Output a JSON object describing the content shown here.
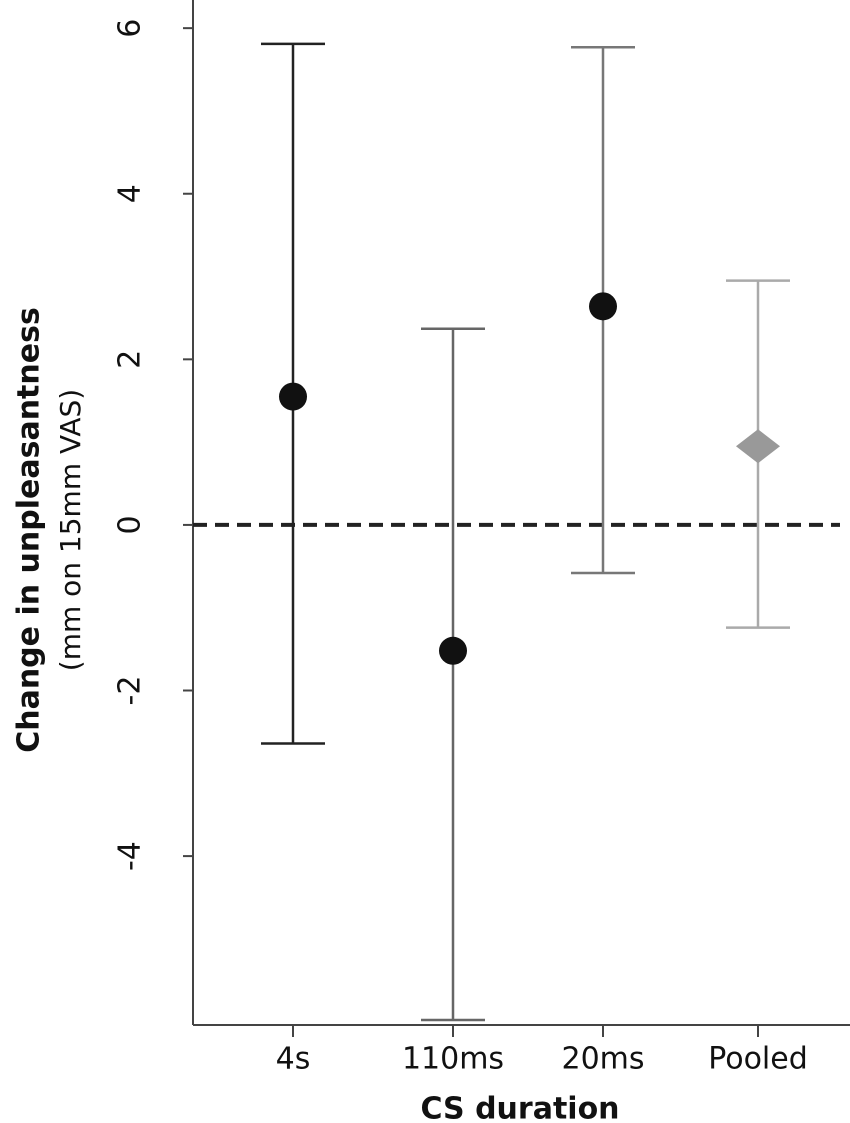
{
  "chart_data": {
    "type": "errorbar",
    "y_label": "Change in unpleasantness",
    "y_label_sub": "(mm on 15mm VAS)",
    "x_label": "CS duration",
    "categories": [
      "4s",
      "110ms",
      "20ms",
      "Pooled"
    ],
    "values": [
      1.55,
      -1.52,
      2.64,
      0.95
    ],
    "lower": [
      -2.64,
      -5.98,
      -0.58,
      -1.24
    ],
    "upper": [
      5.81,
      2.37,
      5.77,
      2.95
    ],
    "markers": [
      "circle",
      "circle",
      "circle",
      "diamond"
    ],
    "marker_colors": [
      "#111111",
      "#111111",
      "#111111",
      "#999999"
    ],
    "bar_colors": [
      "#222222",
      "#666666",
      "#777777",
      "#aaaaaa"
    ],
    "reference_line": 0,
    "ylim": [
      -6.04,
      6.34
    ],
    "yticks": [
      -4,
      -2,
      0,
      2,
      4,
      6
    ]
  }
}
